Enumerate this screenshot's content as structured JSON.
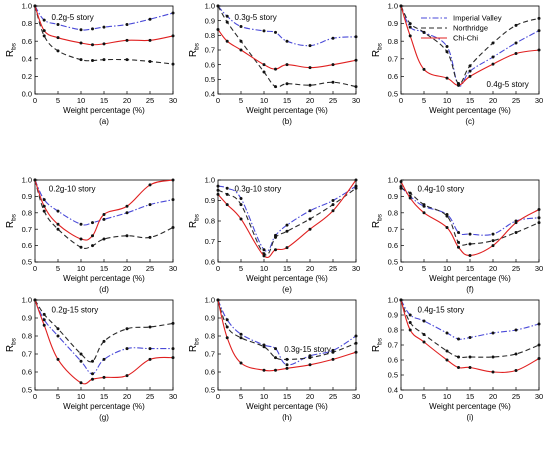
{
  "colors": {
    "imperial_valley": "#4a4ad8",
    "northridge": "#2a2a2a",
    "chi_chi": "#e02020",
    "marker": "#111111"
  },
  "legend": {
    "entries": [
      "Imperial Valley",
      "Northridge",
      "Chi-Chi"
    ]
  },
  "chart_data": [
    {
      "type": "line",
      "label": "0.2g-5 story",
      "caption": "(a)",
      "xlabel": "Weight percentage (%)",
      "ylabel": "R",
      "ylabel_sub": "bs",
      "xlim": [
        0,
        30
      ],
      "ylim": [
        0.0,
        1.0
      ],
      "xticks": [
        0,
        5,
        10,
        15,
        20,
        25,
        30
      ],
      "yticks": [
        0.0,
        0.2,
        0.4,
        0.6,
        0.8,
        1.0
      ],
      "series": [
        {
          "name": "Imperial Valley",
          "x": [
            0,
            2,
            5,
            10,
            12.5,
            15,
            20,
            25,
            30
          ],
          "y": [
            1.0,
            0.84,
            0.79,
            0.73,
            0.74,
            0.76,
            0.79,
            0.85,
            0.92
          ]
        },
        {
          "name": "Northridge",
          "x": [
            0,
            2,
            5,
            10,
            12.5,
            15,
            20,
            25,
            30
          ],
          "y": [
            1.0,
            0.66,
            0.49,
            0.39,
            0.38,
            0.39,
            0.39,
            0.37,
            0.34
          ]
        },
        {
          "name": "Chi-Chi",
          "x": [
            0,
            2,
            5,
            10,
            12.5,
            15,
            20,
            25,
            30
          ],
          "y": [
            1.0,
            0.72,
            0.64,
            0.58,
            0.56,
            0.57,
            0.61,
            0.61,
            0.66
          ]
        }
      ]
    },
    {
      "type": "line",
      "label": "0.3g-5 story",
      "caption": "(b)",
      "xlabel": "Weight percentage (%)",
      "ylabel": "R",
      "ylabel_sub": "bs",
      "xlim": [
        0,
        30
      ],
      "ylim": [
        0.4,
        1.0
      ],
      "xticks": [
        0,
        5,
        10,
        15,
        20,
        25,
        30
      ],
      "yticks": [
        0.4,
        0.5,
        0.6,
        0.7,
        0.8,
        0.9,
        1.0
      ],
      "series": [
        {
          "name": "Imperial Valley",
          "x": [
            0,
            2,
            5,
            10,
            12.5,
            15,
            20,
            25,
            30
          ],
          "y": [
            1.0,
            0.93,
            0.86,
            0.83,
            0.82,
            0.76,
            0.73,
            0.78,
            0.79
          ]
        },
        {
          "name": "Northridge",
          "x": [
            0,
            2,
            5,
            10,
            12.5,
            15,
            20,
            25,
            30
          ],
          "y": [
            1.0,
            0.89,
            0.76,
            0.55,
            0.45,
            0.47,
            0.46,
            0.48,
            0.45
          ]
        },
        {
          "name": "Chi-Chi",
          "x": [
            0,
            2,
            5,
            10,
            12.5,
            15,
            20,
            25,
            30
          ],
          "y": [
            0.84,
            0.76,
            0.7,
            0.6,
            0.57,
            0.6,
            0.58,
            0.6,
            0.63
          ]
        }
      ]
    },
    {
      "type": "line",
      "label": "0.4g-5 story",
      "caption": "(c)",
      "xlabel": "Weight percentage (%)",
      "ylabel": "R",
      "ylabel_sub": "bs",
      "xlim": [
        0,
        30
      ],
      "ylim": [
        0.5,
        1.0
      ],
      "xticks": [
        0,
        5,
        10,
        15,
        20,
        25,
        30
      ],
      "yticks": [
        0.5,
        0.6,
        0.7,
        0.8,
        0.9,
        1.0
      ],
      "series": [
        {
          "name": "Imperial Valley",
          "x": [
            0,
            2,
            5,
            10,
            12.5,
            15,
            20,
            25,
            30
          ],
          "y": [
            1.0,
            0.88,
            0.85,
            0.77,
            0.55,
            0.63,
            0.71,
            0.79,
            0.86
          ]
        },
        {
          "name": "Northridge",
          "x": [
            0,
            2,
            5,
            10,
            12.5,
            15,
            20,
            25,
            30
          ],
          "y": [
            1.0,
            0.9,
            0.85,
            0.74,
            0.56,
            0.66,
            0.79,
            0.89,
            0.93
          ]
        },
        {
          "name": "Chi-Chi",
          "x": [
            0,
            2,
            5,
            10,
            12.5,
            15,
            20,
            25,
            30
          ],
          "y": [
            1.0,
            0.83,
            0.64,
            0.59,
            0.55,
            0.6,
            0.67,
            0.73,
            0.75
          ]
        }
      ]
    },
    {
      "type": "line",
      "label": "0.2g-10 story",
      "caption": "(d)",
      "xlabel": "Weight percentage (%)",
      "ylabel": "R",
      "ylabel_sub": "bs",
      "xlim": [
        0,
        30
      ],
      "ylim": [
        0.5,
        1.0
      ],
      "xticks": [
        0,
        5,
        10,
        15,
        20,
        25,
        30
      ],
      "yticks": [
        0.5,
        0.6,
        0.7,
        0.8,
        0.9,
        1.0
      ],
      "series": [
        {
          "name": "Imperial Valley",
          "x": [
            0,
            2,
            5,
            10,
            12.5,
            15,
            20,
            25,
            30
          ],
          "y": [
            1.0,
            0.88,
            0.81,
            0.73,
            0.74,
            0.76,
            0.8,
            0.85,
            0.88
          ]
        },
        {
          "name": "Northridge",
          "x": [
            0,
            2,
            5,
            10,
            12.5,
            15,
            20,
            25,
            30
          ],
          "y": [
            1.0,
            0.81,
            0.7,
            0.59,
            0.6,
            0.64,
            0.66,
            0.65,
            0.71
          ]
        },
        {
          "name": "Chi-Chi",
          "x": [
            0,
            2,
            5,
            10,
            12.5,
            15,
            20,
            25,
            30
          ],
          "y": [
            1.0,
            0.84,
            0.73,
            0.64,
            0.66,
            0.79,
            0.84,
            0.97,
            1.0
          ]
        }
      ]
    },
    {
      "type": "line",
      "label": "0.3g-10 story",
      "caption": "(e)",
      "xlabel": "Weight percentage (%)",
      "ylabel": "R",
      "ylabel_sub": "bs",
      "xlim": [
        0,
        30
      ],
      "ylim": [
        0.6,
        1.0
      ],
      "xticks": [
        0,
        5,
        10,
        15,
        20,
        25,
        30
      ],
      "yticks": [
        0.6,
        0.7,
        0.8,
        0.9,
        1.0
      ],
      "series": [
        {
          "name": "Imperial Valley",
          "x": [
            0,
            2,
            5,
            10,
            12.5,
            15,
            20,
            25,
            30
          ],
          "y": [
            0.97,
            0.96,
            0.91,
            0.66,
            0.73,
            0.78,
            0.85,
            0.9,
            0.97
          ]
        },
        {
          "name": "Northridge",
          "x": [
            0,
            2,
            5,
            10,
            12.5,
            15,
            20,
            25,
            30
          ],
          "y": [
            0.95,
            0.93,
            0.88,
            0.64,
            0.72,
            0.75,
            0.81,
            0.88,
            0.96
          ]
        },
        {
          "name": "Chi-Chi",
          "x": [
            0,
            2,
            5,
            10,
            12.5,
            15,
            20,
            25,
            30
          ],
          "y": [
            0.93,
            0.88,
            0.81,
            0.63,
            0.66,
            0.67,
            0.76,
            0.85,
            1.0
          ]
        }
      ]
    },
    {
      "type": "line",
      "label": "0.4g-10 story",
      "caption": "(f)",
      "xlabel": "Weight percentage (%)",
      "ylabel": "R",
      "ylabel_sub": "bs",
      "xlim": [
        0,
        30
      ],
      "ylim": [
        0.5,
        1.0
      ],
      "xticks": [
        0,
        5,
        10,
        15,
        20,
        25,
        30
      ],
      "yticks": [
        0.5,
        0.6,
        0.7,
        0.8,
        0.9,
        1.0
      ],
      "series": [
        {
          "name": "Imperial Valley",
          "x": [
            0,
            2,
            5,
            10,
            12.5,
            15,
            20,
            25,
            30
          ],
          "y": [
            0.96,
            0.9,
            0.84,
            0.79,
            0.68,
            0.67,
            0.67,
            0.75,
            0.77
          ]
        },
        {
          "name": "Northridge",
          "x": [
            0,
            2,
            5,
            10,
            12.5,
            15,
            20,
            25,
            30
          ],
          "y": [
            0.95,
            0.92,
            0.85,
            0.78,
            0.62,
            0.61,
            0.63,
            0.68,
            0.74
          ]
        },
        {
          "name": "Chi-Chi",
          "x": [
            0,
            2,
            5,
            10,
            12.5,
            15,
            20,
            25,
            30
          ],
          "y": [
            0.99,
            0.89,
            0.8,
            0.71,
            0.59,
            0.54,
            0.6,
            0.74,
            0.82
          ]
        }
      ]
    },
    {
      "type": "line",
      "label": "0.2g-15 story",
      "caption": "(g)",
      "xlabel": "Weight percentage (%)",
      "ylabel": "R",
      "ylabel_sub": "bs",
      "xlim": [
        0,
        30
      ],
      "ylim": [
        0.5,
        1.0
      ],
      "xticks": [
        0,
        5,
        10,
        15,
        20,
        25,
        30
      ],
      "yticks": [
        0.5,
        0.6,
        0.7,
        0.8,
        0.9,
        1.0
      ],
      "series": [
        {
          "name": "Imperial Valley",
          "x": [
            0,
            2,
            5,
            10,
            12.5,
            15,
            20,
            25,
            30
          ],
          "y": [
            1.0,
            0.89,
            0.8,
            0.66,
            0.59,
            0.67,
            0.73,
            0.73,
            0.73
          ]
        },
        {
          "name": "Northridge",
          "x": [
            0,
            2,
            5,
            10,
            12.5,
            15,
            20,
            25,
            30
          ],
          "y": [
            1.0,
            0.92,
            0.84,
            0.7,
            0.66,
            0.77,
            0.84,
            0.85,
            0.87
          ]
        },
        {
          "name": "Chi-Chi",
          "x": [
            0,
            2,
            5,
            10,
            12.5,
            15,
            20,
            25,
            30
          ],
          "y": [
            1.0,
            0.86,
            0.67,
            0.54,
            0.56,
            0.57,
            0.58,
            0.67,
            0.68
          ]
        }
      ]
    },
    {
      "type": "line",
      "label": "0.3g-15 story",
      "caption": "(h)",
      "xlabel": "Weight percentage (%)",
      "ylabel": "R",
      "ylabel_sub": "bs",
      "xlim": [
        0,
        30
      ],
      "ylim": [
        0.5,
        1.0
      ],
      "xticks": [
        0,
        5,
        10,
        15,
        20,
        25,
        30
      ],
      "yticks": [
        0.5,
        0.6,
        0.7,
        0.8,
        0.9,
        1.0
      ],
      "series": [
        {
          "name": "Imperial Valley",
          "x": [
            0,
            2,
            5,
            10,
            12.5,
            15,
            20,
            25,
            30
          ],
          "y": [
            1.0,
            0.89,
            0.81,
            0.75,
            0.73,
            0.64,
            0.69,
            0.72,
            0.8
          ]
        },
        {
          "name": "Northridge",
          "x": [
            0,
            2,
            5,
            10,
            12.5,
            15,
            20,
            25,
            30
          ],
          "y": [
            1.0,
            0.85,
            0.79,
            0.74,
            0.68,
            0.67,
            0.68,
            0.71,
            0.76
          ]
        },
        {
          "name": "Chi-Chi",
          "x": [
            0,
            2,
            5,
            10,
            12.5,
            15,
            20,
            25,
            30
          ],
          "y": [
            1.0,
            0.79,
            0.65,
            0.61,
            0.61,
            0.62,
            0.64,
            0.67,
            0.71
          ]
        }
      ]
    },
    {
      "type": "line",
      "label": "0.4g-15 story",
      "caption": "(i)",
      "xlabel": "Weight percentage (%)",
      "ylabel": "R",
      "ylabel_sub": "bs",
      "xlim": [
        0,
        30
      ],
      "ylim": [
        0.4,
        1.0
      ],
      "xticks": [
        0,
        5,
        10,
        15,
        20,
        25,
        30
      ],
      "yticks": [
        0.4,
        0.5,
        0.6,
        0.7,
        0.8,
        0.9,
        1.0
      ],
      "series": [
        {
          "name": "Imperial Valley",
          "x": [
            0,
            2,
            5,
            10,
            12.5,
            15,
            20,
            25,
            30
          ],
          "y": [
            1.0,
            0.9,
            0.86,
            0.78,
            0.74,
            0.75,
            0.78,
            0.8,
            0.84
          ]
        },
        {
          "name": "Northridge",
          "x": [
            0,
            2,
            5,
            10,
            12.5,
            15,
            20,
            25,
            30
          ],
          "y": [
            1.0,
            0.85,
            0.77,
            0.66,
            0.62,
            0.62,
            0.62,
            0.64,
            0.7
          ]
        },
        {
          "name": "Chi-Chi",
          "x": [
            0,
            2,
            5,
            10,
            12.5,
            15,
            20,
            25,
            30
          ],
          "y": [
            1.0,
            0.8,
            0.72,
            0.6,
            0.55,
            0.55,
            0.52,
            0.53,
            0.61
          ]
        }
      ]
    }
  ]
}
